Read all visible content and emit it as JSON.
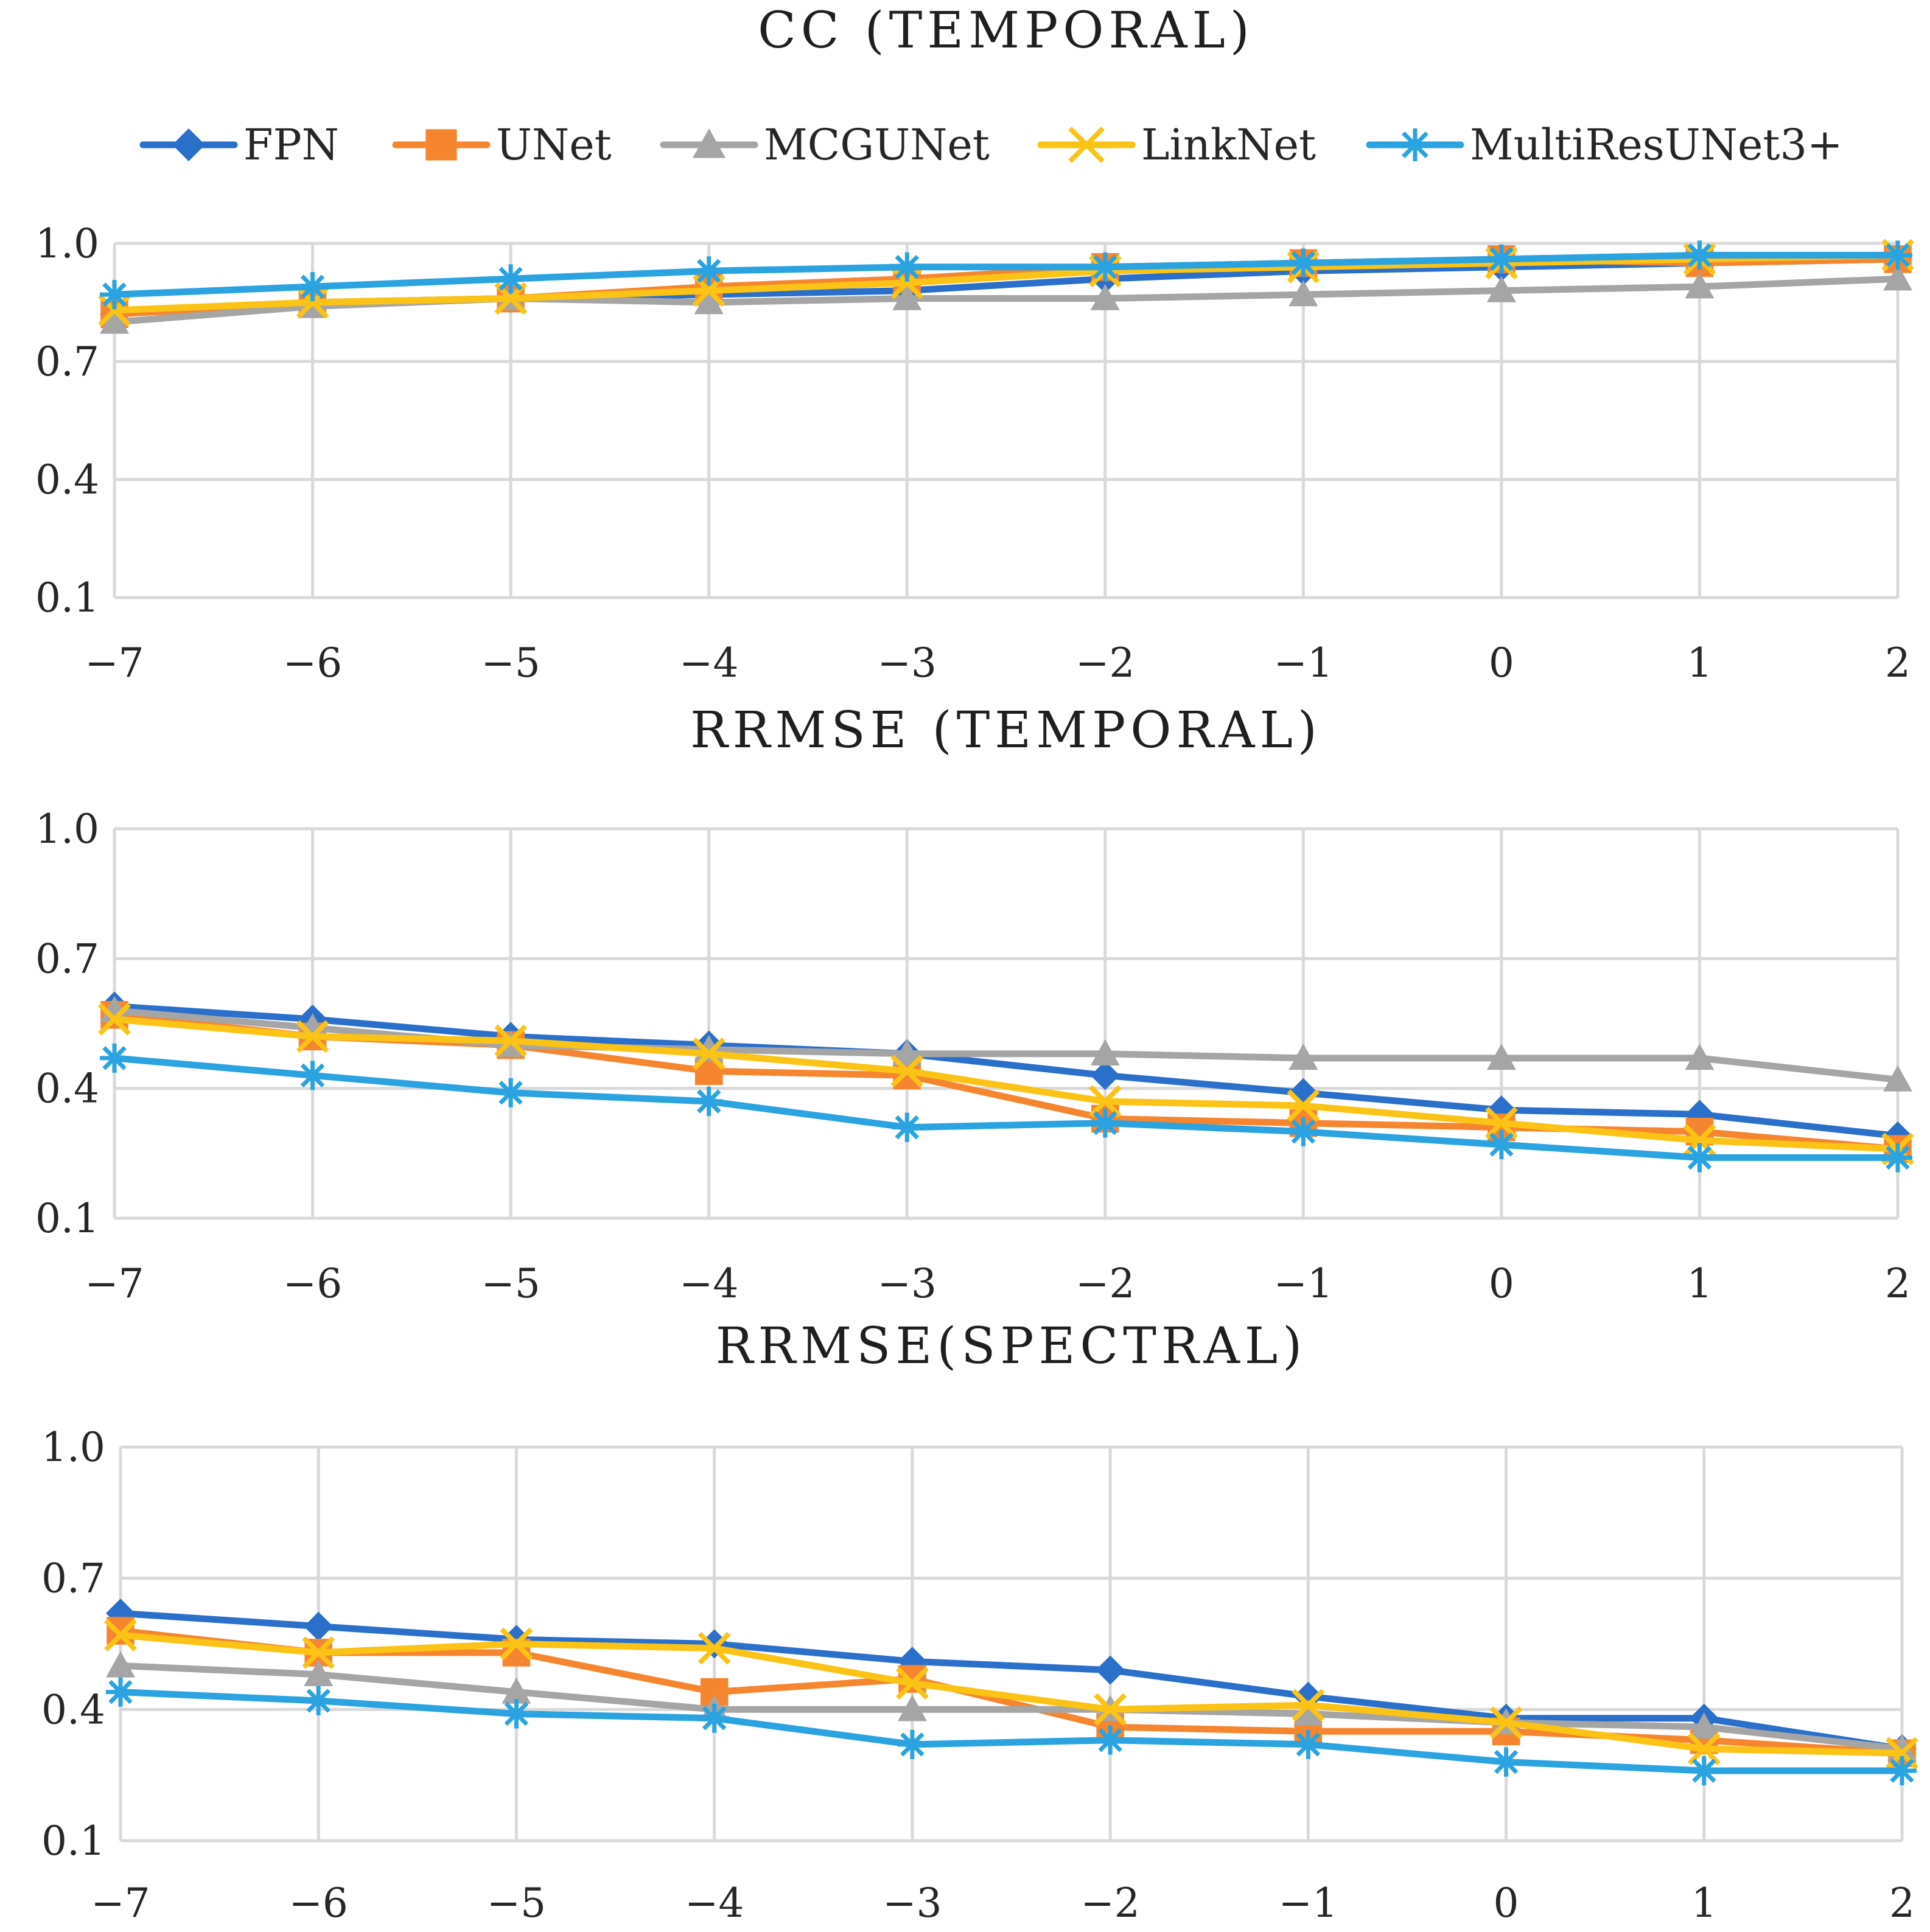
{
  "legend": [
    {
      "name": "FPN",
      "color": "#2a6fc9",
      "marker": "diamond"
    },
    {
      "name": "UNet",
      "color": "#f5862f",
      "marker": "square"
    },
    {
      "name": "MCGUNet",
      "color": "#a5a5a5",
      "marker": "triangle"
    },
    {
      "name": "LinkNet",
      "color": "#fbc315",
      "marker": "x"
    },
    {
      "name": "MultiResUNet3+",
      "color": "#2aa3e0",
      "marker": "star"
    }
  ],
  "chart_data": [
    {
      "type": "line",
      "title": "CC (TEMPORAL)",
      "categories": [
        "−7",
        "−6",
        "−5",
        "−4",
        "−3",
        "−2",
        "−1",
        "0",
        "1",
        "2"
      ],
      "ylim": [
        0.1,
        1.0
      ],
      "yticks": [
        "1.0",
        "0.7",
        "0.4",
        "0.1"
      ],
      "grid": true,
      "series": [
        {
          "name": "FPN",
          "values": [
            0.82,
            0.85,
            0.86,
            0.87,
            0.88,
            0.91,
            0.93,
            0.94,
            0.95,
            0.96
          ]
        },
        {
          "name": "UNet",
          "values": [
            0.82,
            0.85,
            0.86,
            0.89,
            0.91,
            0.94,
            0.95,
            0.96,
            0.95,
            0.96
          ]
        },
        {
          "name": "MCGUNet",
          "values": [
            0.8,
            0.84,
            0.86,
            0.85,
            0.86,
            0.86,
            0.87,
            0.88,
            0.89,
            0.91
          ]
        },
        {
          "name": "LinkNet",
          "values": [
            0.83,
            0.85,
            0.86,
            0.88,
            0.9,
            0.93,
            0.94,
            0.95,
            0.96,
            0.97
          ]
        },
        {
          "name": "MultiResUNet3+",
          "values": [
            0.87,
            0.89,
            0.91,
            0.93,
            0.94,
            0.94,
            0.95,
            0.96,
            0.97,
            0.97
          ]
        }
      ]
    },
    {
      "type": "line",
      "title": "RRMSE (TEMPORAL)",
      "categories": [
        "−7",
        "−6",
        "−5",
        "−4",
        "−3",
        "−2",
        "−1",
        "0",
        "1",
        "2"
      ],
      "ylim": [
        0.1,
        1.0
      ],
      "yticks": [
        "1.0",
        "0.7",
        "0.4",
        "0.1"
      ],
      "grid": true,
      "series": [
        {
          "name": "FPN",
          "values": [
            0.59,
            0.56,
            0.52,
            0.5,
            0.48,
            0.43,
            0.39,
            0.35,
            0.34,
            0.29
          ]
        },
        {
          "name": "UNet",
          "values": [
            0.57,
            0.52,
            0.5,
            0.44,
            0.43,
            0.33,
            0.32,
            0.31,
            0.3,
            0.26
          ]
        },
        {
          "name": "MCGUNet",
          "values": [
            0.58,
            0.54,
            0.5,
            0.49,
            0.48,
            0.48,
            0.47,
            0.47,
            0.47,
            0.42
          ]
        },
        {
          "name": "LinkNet",
          "values": [
            0.56,
            0.52,
            0.51,
            0.48,
            0.44,
            0.37,
            0.36,
            0.32,
            0.28,
            0.26
          ]
        },
        {
          "name": "MultiResUNet3+",
          "values": [
            0.47,
            0.43,
            0.39,
            0.37,
            0.31,
            0.32,
            0.3,
            0.27,
            0.24,
            0.24
          ]
        }
      ]
    },
    {
      "type": "line",
      "title": "RRMSE(SPECTRAL)",
      "categories": [
        "−7",
        "−6",
        "−5",
        "−4",
        "−3",
        "−2",
        "−1",
        "0",
        "1",
        "2"
      ],
      "ylim": [
        0.1,
        1.0
      ],
      "yticks": [
        "1.0",
        "0.7",
        "0.4",
        "0.1"
      ],
      "grid": true,
      "series": [
        {
          "name": "FPN",
          "values": [
            0.62,
            0.59,
            0.56,
            0.55,
            0.51,
            0.49,
            0.43,
            0.38,
            0.38,
            0.31
          ]
        },
        {
          "name": "UNet",
          "values": [
            0.58,
            0.53,
            0.53,
            0.44,
            0.47,
            0.36,
            0.35,
            0.35,
            0.33,
            0.3
          ]
        },
        {
          "name": "MCGUNet",
          "values": [
            0.5,
            0.48,
            0.44,
            0.4,
            0.4,
            0.4,
            0.39,
            0.37,
            0.36,
            0.31
          ]
        },
        {
          "name": "LinkNet",
          "values": [
            0.57,
            0.53,
            0.55,
            0.54,
            0.46,
            0.4,
            0.41,
            0.37,
            0.31,
            0.3
          ]
        },
        {
          "name": "MultiResUNet3+",
          "values": [
            0.44,
            0.42,
            0.39,
            0.38,
            0.32,
            0.33,
            0.32,
            0.28,
            0.26,
            0.26
          ]
        }
      ]
    }
  ]
}
